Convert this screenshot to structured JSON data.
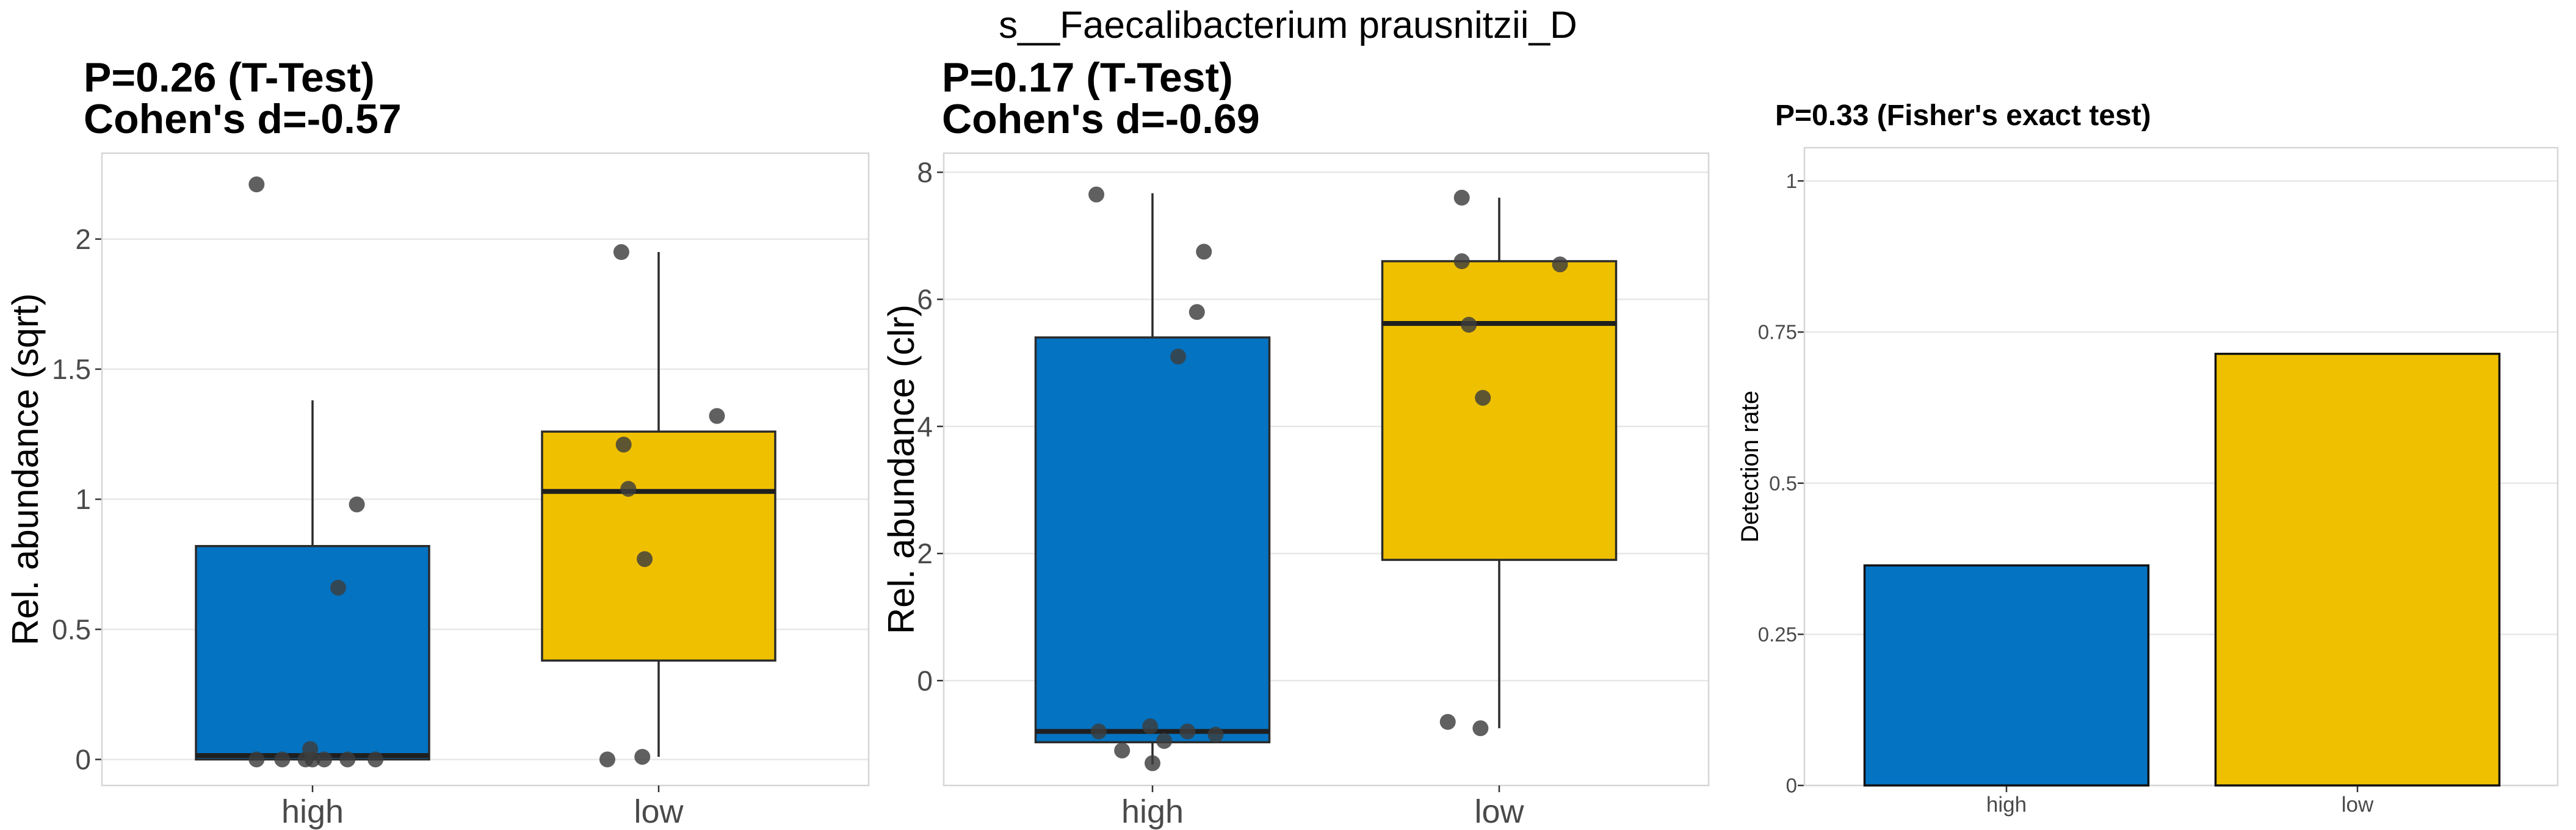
{
  "figure_title": "s__Faecalibacterium prausnitzii_D",
  "colors": {
    "high": "#0473C2",
    "low": "#EFC000",
    "point": "#3D3D3D",
    "grid": "#E7E7E7",
    "panel_border": "#D6D6D6",
    "box_stroke": "#2B2B2B",
    "tick_text": "#4A4A4A",
    "title_text": "#000000"
  },
  "chart_data": [
    {
      "type": "boxplot",
      "title_lines": [
        "P=0.26 (T-Test)",
        "Cohen's d=-0.57"
      ],
      "ylabel": "Rel. abundance (sqrt)",
      "categories": [
        "high",
        "low"
      ],
      "ylim": [
        -0.1,
        2.33
      ],
      "yticks": [
        0,
        0.5,
        1,
        1.5,
        2
      ],
      "ytick_labels": [
        "0",
        "0.5",
        "1",
        "1.5",
        "2"
      ],
      "grid": "horizontal-major",
      "groups": [
        {
          "category": "high",
          "color_key": "high",
          "q1": 0.0,
          "median": 0.015,
          "q3": 0.82,
          "whisker_low": 0.0,
          "whisker_high": 1.38,
          "points": [
            [
              2.21,
              -0.24
            ],
            [
              0.98,
              0.19
            ],
            [
              0.66,
              0.11
            ],
            [
              0.04,
              -0.01
            ],
            [
              0,
              -0.24
            ],
            [
              0,
              -0.13
            ],
            [
              0,
              -0.03
            ],
            [
              0,
              0.0
            ],
            [
              0,
              0.05
            ],
            [
              0,
              0.15
            ],
            [
              0,
              0.27
            ]
          ]
        },
        {
          "category": "low",
          "color_key": "low",
          "q1": 0.38,
          "median": 1.03,
          "q3": 1.26,
          "whisker_low": 0.01,
          "whisker_high": 1.95,
          "points": [
            [
              1.95,
              -0.16
            ],
            [
              1.32,
              0.25
            ],
            [
              1.21,
              -0.15
            ],
            [
              1.04,
              -0.13
            ],
            [
              0.77,
              -0.06
            ],
            [
              0.0,
              -0.22
            ],
            [
              0.01,
              -0.07
            ]
          ]
        }
      ]
    },
    {
      "type": "boxplot",
      "title_lines": [
        "P=0.17 (T-Test)",
        "Cohen's d=-0.69"
      ],
      "ylabel": "Rel. abundance (clr)",
      "categories": [
        "high",
        "low"
      ],
      "ylim": [
        -1.65,
        8.3
      ],
      "yticks": [
        0,
        2,
        4,
        6,
        8
      ],
      "ytick_labels": [
        "0",
        "2",
        "4",
        "6",
        "8"
      ],
      "grid": "horizontal-major",
      "groups": [
        {
          "category": "high",
          "color_key": "high",
          "q1": -0.97,
          "median": -0.8,
          "q3": 5.4,
          "whisker_low": -1.32,
          "whisker_high": 7.67,
          "points": [
            [
              7.65,
              -0.24
            ],
            [
              6.75,
              0.22
            ],
            [
              5.8,
              0.19
            ],
            [
              5.1,
              0.11
            ],
            [
              -0.72,
              -0.01
            ],
            [
              -0.8,
              -0.23
            ],
            [
              -0.8,
              0.15
            ],
            [
              -0.85,
              0.27
            ],
            [
              -0.95,
              0.05
            ],
            [
              -1.1,
              -0.13
            ],
            [
              -1.3,
              0.0
            ]
          ]
        },
        {
          "category": "low",
          "color_key": "low",
          "q1": 1.9,
          "median": 5.62,
          "q3": 6.6,
          "whisker_low": -0.75,
          "whisker_high": 7.6,
          "points": [
            [
              7.6,
              -0.16
            ],
            [
              6.6,
              -0.16
            ],
            [
              6.55,
              0.26
            ],
            [
              5.6,
              -0.13
            ],
            [
              4.45,
              -0.07
            ],
            [
              -0.65,
              -0.22
            ],
            [
              -0.75,
              -0.08
            ]
          ]
        }
      ]
    },
    {
      "type": "bar",
      "title": "P=0.33 (Fisher's exact test)",
      "ylabel": "Detection rate",
      "categories": [
        "high",
        "low"
      ],
      "values": [
        0.364,
        0.714
      ],
      "color_keys": [
        "high",
        "low"
      ],
      "ylim": [
        0,
        1.055
      ],
      "yticks": [
        0,
        0.25,
        0.5,
        0.75,
        1
      ],
      "ytick_labels": [
        "0",
        "0.25",
        "0.5",
        "0.75",
        "1"
      ],
      "grid": "horizontal-major",
      "legend": "none"
    }
  ]
}
